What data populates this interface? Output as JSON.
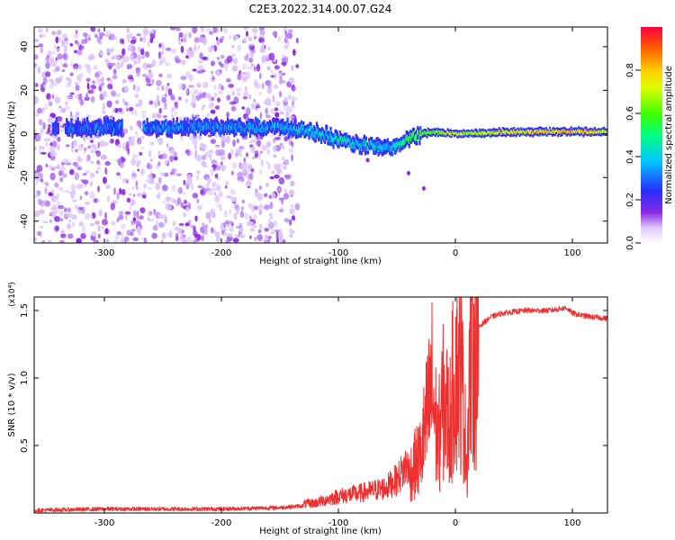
{
  "title": "C2E3.2022.314.00.07.G24",
  "colors": {
    "snr_line": "#ee3030",
    "spectrogram_scatter": "#9a30f0"
  },
  "chart_data": [
    {
      "type": "heatmap",
      "xlabel": "Height of straight line (km)",
      "ylabel": "Frequency (Hz)",
      "xlim": [
        -360,
        130
      ],
      "ylim": [
        -50,
        49
      ],
      "xticks": [
        -300,
        -200,
        -100,
        0,
        100
      ],
      "yticks": [
        -40,
        -20,
        0,
        20,
        40
      ],
      "colorbar": {
        "label": "Normalized spectral amplitude",
        "range": [
          0,
          1
        ],
        "ticks": [
          "0.0",
          "0.2",
          "0.4",
          "0.6",
          "0.8"
        ]
      },
      "ridge_frequency": {
        "x": [
          -345,
          -300,
          -250,
          -200,
          -150,
          -120,
          -100,
          -80,
          -60,
          -50,
          -40,
          -30,
          -20,
          0,
          50,
          80,
          100,
          130
        ],
        "frequency": [
          3,
          3,
          3,
          3,
          3,
          1,
          -3,
          -5,
          -6,
          -5,
          -2,
          0,
          1,
          0,
          1,
          1,
          1,
          1
        ],
        "amplitude": [
          0.25,
          0.3,
          0.3,
          0.32,
          0.35,
          0.4,
          0.45,
          0.4,
          0.35,
          0.45,
          0.55,
          0.6,
          0.6,
          0.7,
          0.72,
          0.8,
          0.8,
          0.7
        ]
      }
    },
    {
      "type": "line",
      "xlabel": "Height of straight line (km)",
      "ylabel": "SNR (10 * v/v)",
      "y_multiplier_label": "(x10⁴)",
      "xlim": [
        -360,
        130
      ],
      "ylim": [
        0,
        1.6
      ],
      "xticks": [
        -300,
        -200,
        -100,
        0,
        100
      ],
      "yticks": [
        "0.5",
        "1.0",
        "1.5"
      ],
      "y_unit_scale": 10000,
      "series": [
        {
          "x": [
            -360,
            -300,
            -200,
            -150,
            -120,
            -100,
            -80,
            -60,
            -50,
            -40,
            -30,
            -25,
            -20,
            -15,
            -10,
            -5,
            0,
            5,
            10,
            12,
            15,
            20,
            30,
            40,
            60,
            80,
            95,
            100,
            110,
            130
          ],
          "values": [
            0.02,
            0.03,
            0.03,
            0.04,
            0.06,
            0.1,
            0.12,
            0.15,
            0.2,
            0.3,
            0.45,
            0.7,
            1.0,
            0.55,
            0.9,
            0.7,
            1.2,
            1.1,
            0.4,
            1.15,
            1.3,
            1.38,
            1.45,
            1.48,
            1.5,
            1.5,
            1.52,
            1.48,
            1.46,
            1.44
          ]
        }
      ]
    }
  ]
}
